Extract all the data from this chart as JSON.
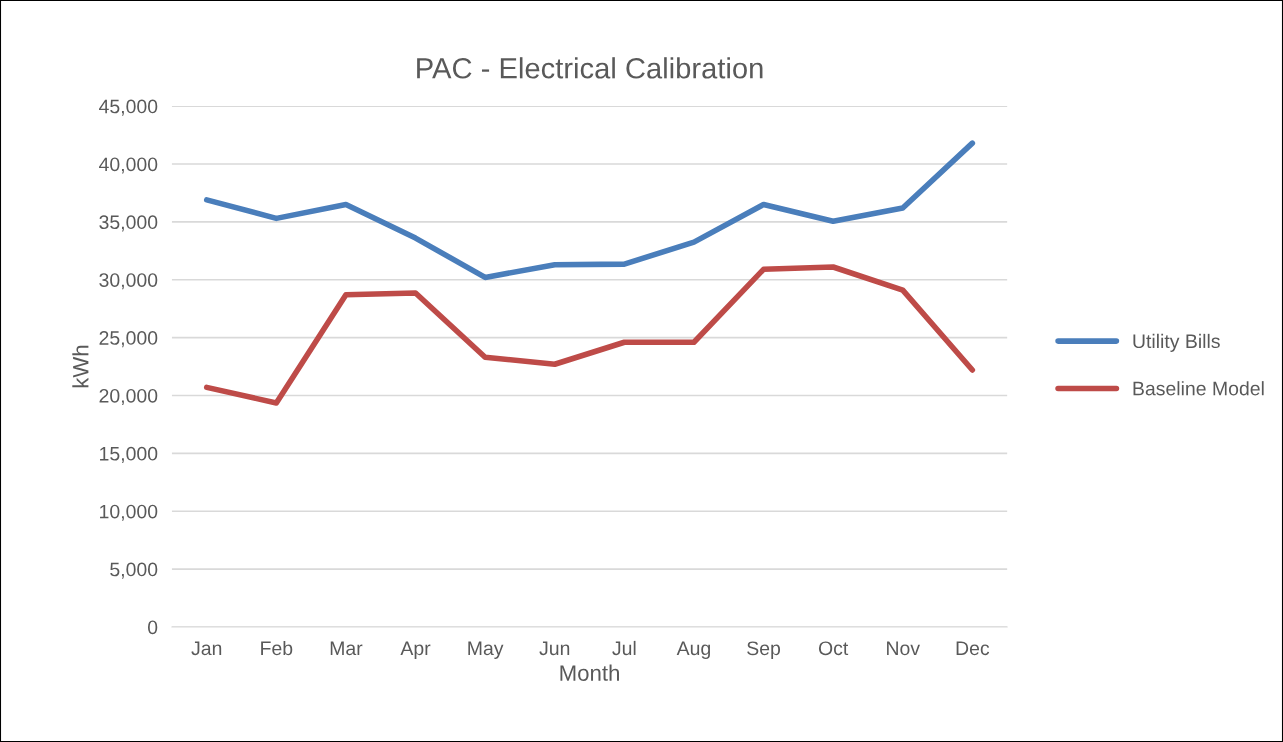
{
  "chart_data": {
    "type": "line",
    "title": "PAC - Electrical Calibration",
    "xlabel": "Month",
    "ylabel": "kWh",
    "categories": [
      "Jan",
      "Feb",
      "Mar",
      "Apr",
      "May",
      "Jun",
      "Jul",
      "Aug",
      "Sep",
      "Oct",
      "Nov",
      "Dec"
    ],
    "series": [
      {
        "name": "Utility Bills",
        "color": "#4a7ebb",
        "values": [
          36900,
          35300,
          36500,
          33600,
          30200,
          31300,
          31350,
          33250,
          36500,
          35050,
          36200,
          41800
        ]
      },
      {
        "name": "Baseline Model",
        "color": "#be4b48",
        "values": [
          20700,
          19350,
          28700,
          28850,
          23300,
          22700,
          24600,
          24600,
          30900,
          31100,
          29100,
          22200
        ]
      }
    ],
    "ylim": [
      0,
      45000
    ],
    "yticks": [
      0,
      {
        "value": 5000,
        "label": "5,000"
      },
      {
        "value": 10000,
        "label": "10,000"
      },
      {
        "value": 15000,
        "label": "15,000"
      },
      {
        "value": 20000,
        "label": "20,000"
      },
      {
        "value": 25000,
        "label": "25,000"
      },
      {
        "value": 30000,
        "label": "30,000"
      },
      {
        "value": 35000,
        "label": "35,000"
      },
      {
        "value": 40000,
        "label": "40,000"
      },
      {
        "value": 45000,
        "label": "45,000"
      }
    ],
    "grid": "y",
    "legend": "right",
    "marker": "none",
    "line_style": "solid"
  }
}
